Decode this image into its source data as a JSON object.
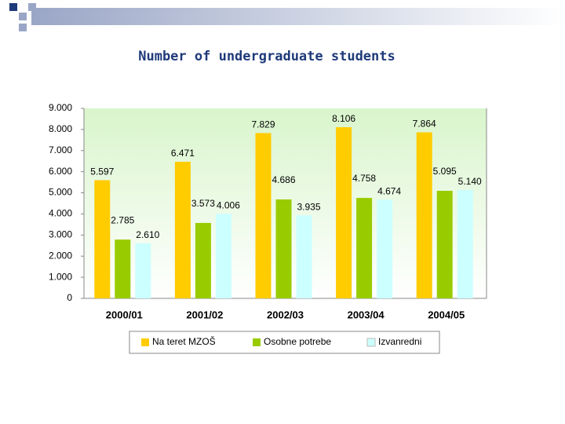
{
  "chart_data": {
    "type": "bar",
    "title": "Number of undergraduate students",
    "categories": [
      "2000/01",
      "2001/02",
      "2002/03",
      "2003/04",
      "2004/05"
    ],
    "series": [
      {
        "name": "Na teret MZOŠ",
        "color": "#ffcc00",
        "values": [
          5597,
          6471,
          7829,
          8106,
          7864
        ],
        "value_labels": [
          "5.597",
          "6.471",
          "7.829",
          "8.106",
          "7.864"
        ]
      },
      {
        "name": "Osobne potrebe",
        "color": "#99cc00",
        "values": [
          2785,
          3573,
          4686,
          4758,
          5095
        ],
        "value_labels": [
          "2.785",
          "3.573",
          "4.686",
          "4.758",
          "5.095"
        ]
      },
      {
        "name": "Izvanredni",
        "color": "#ccffff",
        "values": [
          2610,
          4006,
          3935,
          4674,
          5140
        ],
        "value_labels": [
          "2.610",
          "4.006",
          "3.935",
          "4.674",
          "5.140"
        ]
      }
    ],
    "ylim": [
      0,
      9000
    ],
    "yticks": [
      {
        "value": 0,
        "label": "0"
      },
      {
        "value": 1000,
        "label": "1.000"
      },
      {
        "value": 2000,
        "label": "2.000"
      },
      {
        "value": 3000,
        "label": "3.000"
      },
      {
        "value": 4000,
        "label": "4.000"
      },
      {
        "value": 5000,
        "label": "5.000"
      },
      {
        "value": 6000,
        "label": "6.000"
      },
      {
        "value": 7000,
        "label": "7.000"
      },
      {
        "value": 8000,
        "label": "8.000"
      },
      {
        "value": 9000,
        "label": "9.000"
      }
    ],
    "legend": "bottom"
  }
}
